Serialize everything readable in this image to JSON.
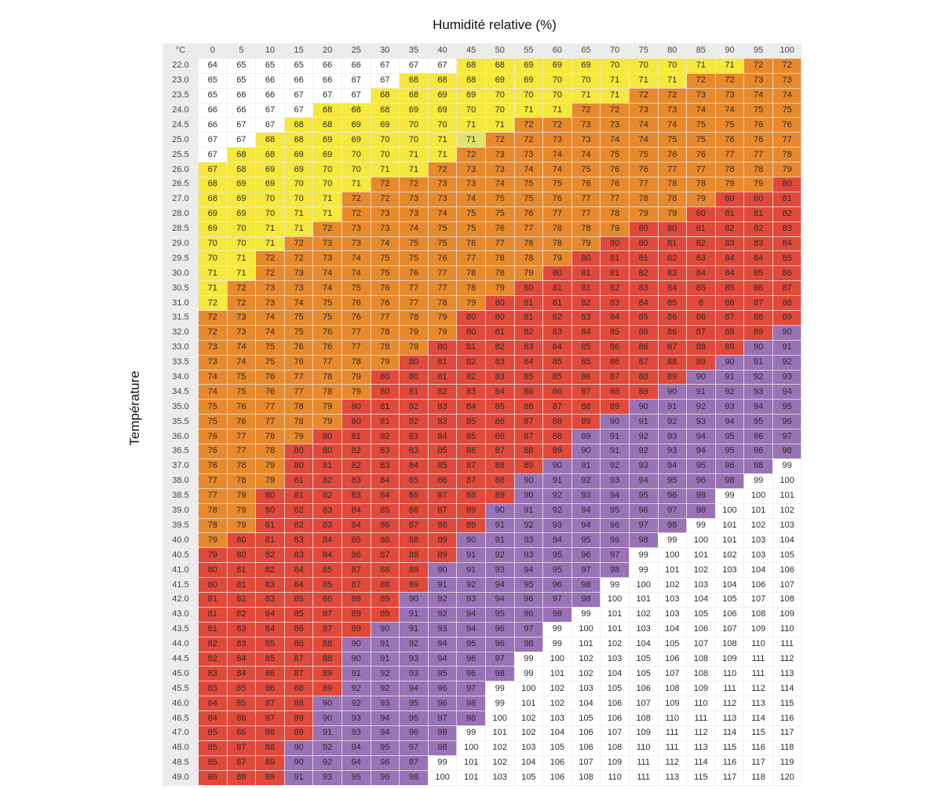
{
  "chart_data": {
    "type": "heatmap",
    "xlabel": "Humidité relative (%)",
    "ylabel": "Température",
    "corner_label": "°C",
    "x": [
      0,
      5,
      10,
      15,
      20,
      25,
      30,
      35,
      40,
      45,
      50,
      55,
      60,
      65,
      70,
      75,
      80,
      85,
      90,
      95,
      100
    ],
    "y": [
      "22.0",
      "23.0",
      "23.5",
      "24.0",
      "24.5",
      "25.0",
      "25.5",
      "26.0",
      "26.5",
      "27.0",
      "28.0",
      "28.5",
      "29.0",
      "29.5",
      "30.0",
      "30.5",
      "31.0",
      "31.5",
      "32.0",
      "33.0",
      "33.5",
      "34.0",
      "34.5",
      "35.0",
      "35.5",
      "36.0",
      "36.5",
      "37.0",
      "38.0",
      "38.5",
      "39.0",
      "39.5",
      "40.0",
      "40.5",
      "41.0",
      "41.5",
      "42.0",
      "43.0",
      "43.5",
      "44.0",
      "44.5",
      "45.0",
      "45.5",
      "46.0",
      "46.5",
      "47.0",
      "48.0",
      "48.5",
      "49.0"
    ],
    "values": [
      [
        64,
        65,
        65,
        65,
        66,
        66,
        67,
        67,
        67,
        68,
        68,
        69,
        69,
        69,
        70,
        70,
        70,
        71,
        71,
        72,
        72
      ],
      [
        65,
        65,
        66,
        66,
        66,
        67,
        67,
        68,
        68,
        68,
        69,
        69,
        70,
        70,
        71,
        71,
        71,
        72,
        72,
        73,
        73
      ],
      [
        65,
        66,
        66,
        67,
        67,
        67,
        68,
        68,
        69,
        69,
        70,
        70,
        70,
        71,
        71,
        72,
        72,
        73,
        73,
        74,
        74
      ],
      [
        66,
        66,
        67,
        67,
        68,
        68,
        68,
        69,
        69,
        70,
        70,
        71,
        71,
        72,
        72,
        73,
        73,
        74,
        74,
        75,
        75
      ],
      [
        66,
        67,
        67,
        68,
        68,
        69,
        69,
        70,
        70,
        71,
        71,
        72,
        72,
        73,
        73,
        74,
        74,
        75,
        75,
        76,
        76
      ],
      [
        67,
        67,
        68,
        68,
        69,
        69,
        70,
        70,
        71,
        71,
        72,
        72,
        73,
        73,
        74,
        74,
        75,
        75,
        76,
        76,
        77
      ],
      [
        67,
        68,
        68,
        69,
        69,
        70,
        70,
        71,
        71,
        72,
        73,
        73,
        74,
        74,
        75,
        75,
        76,
        76,
        77,
        77,
        78
      ],
      [
        67,
        68,
        69,
        69,
        70,
        70,
        71,
        71,
        72,
        73,
        73,
        74,
        74,
        75,
        76,
        76,
        77,
        77,
        78,
        78,
        79
      ],
      [
        68,
        69,
        69,
        70,
        70,
        71,
        72,
        72,
        73,
        73,
        74,
        75,
        75,
        76,
        76,
        77,
        78,
        78,
        79,
        79,
        80
      ],
      [
        68,
        69,
        70,
        70,
        71,
        72,
        72,
        73,
        73,
        74,
        75,
        75,
        76,
        77,
        77,
        78,
        78,
        79,
        80,
        80,
        81
      ],
      [
        69,
        69,
        70,
        71,
        71,
        72,
        73,
        73,
        74,
        75,
        75,
        76,
        77,
        77,
        78,
        79,
        79,
        80,
        81,
        81,
        82
      ],
      [
        69,
        70,
        71,
        71,
        72,
        73,
        73,
        74,
        75,
        75,
        76,
        77,
        78,
        78,
        79,
        80,
        80,
        81,
        82,
        82,
        83
      ],
      [
        70,
        70,
        71,
        72,
        73,
        73,
        74,
        75,
        75,
        76,
        77,
        78,
        78,
        79,
        80,
        80,
        81,
        82,
        83,
        83,
        84
      ],
      [
        70,
        71,
        72,
        72,
        73,
        74,
        75,
        75,
        76,
        77,
        78,
        78,
        79,
        80,
        81,
        81,
        82,
        83,
        84,
        84,
        85
      ],
      [
        71,
        71,
        72,
        73,
        74,
        74,
        75,
        76,
        77,
        78,
        78,
        79,
        80,
        81,
        81,
        82,
        83,
        84,
        84,
        85,
        86
      ],
      [
        71,
        72,
        73,
        73,
        74,
        75,
        76,
        77,
        77,
        78,
        79,
        80,
        81,
        81,
        82,
        83,
        84,
        85,
        85,
        86,
        87
      ],
      [
        72,
        72,
        73,
        74,
        75,
        76,
        76,
        77,
        78,
        79,
        80,
        81,
        81,
        82,
        83,
        84,
        85,
        8,
        86,
        87,
        88
      ],
      [
        72,
        73,
        74,
        75,
        75,
        76,
        77,
        78,
        79,
        80,
        80,
        81,
        82,
        83,
        84,
        85,
        86,
        86,
        87,
        88,
        89
      ],
      [
        72,
        73,
        74,
        75,
        76,
        77,
        78,
        79,
        79,
        80,
        81,
        82,
        83,
        84,
        85,
        86,
        86,
        87,
        88,
        89,
        90
      ],
      [
        73,
        74,
        75,
        76,
        76,
        77,
        78,
        79,
        80,
        81,
        82,
        83,
        84,
        85,
        86,
        86,
        87,
        88,
        89,
        90,
        91
      ],
      [
        73,
        74,
        75,
        76,
        77,
        78,
        79,
        80,
        81,
        82,
        83,
        84,
        85,
        85,
        86,
        87,
        88,
        89,
        90,
        91,
        92
      ],
      [
        74,
        75,
        76,
        77,
        78,
        79,
        80,
        80,
        81,
        82,
        83,
        85,
        85,
        86,
        87,
        88,
        89,
        90,
        91,
        92,
        93
      ],
      [
        74,
        75,
        76,
        77,
        78,
        79,
        80,
        81,
        82,
        83,
        84,
        86,
        86,
        87,
        88,
        89,
        90,
        91,
        92,
        93,
        94
      ],
      [
        75,
        76,
        77,
        78,
        79,
        80,
        81,
        82,
        83,
        84,
        85,
        86,
        87,
        88,
        89,
        90,
        91,
        92,
        93,
        94,
        95
      ],
      [
        75,
        76,
        77,
        78,
        79,
        80,
        81,
        82,
        83,
        85,
        86,
        87,
        88,
        89,
        90,
        91,
        92,
        93,
        94,
        95,
        96
      ],
      [
        76,
        77,
        78,
        79,
        80,
        81,
        82,
        83,
        84,
        85,
        86,
        87,
        88,
        89,
        91,
        92,
        93,
        94,
        95,
        96,
        97
      ],
      [
        76,
        77,
        78,
        80,
        80,
        82,
        83,
        83,
        85,
        86,
        87,
        88,
        89,
        90,
        91,
        92,
        93,
        94,
        95,
        96,
        98
      ],
      [
        76,
        78,
        79,
        80,
        81,
        82,
        83,
        84,
        85,
        87,
        88,
        89,
        90,
        91,
        92,
        93,
        94,
        95,
        96,
        98,
        99
      ],
      [
        77,
        78,
        79,
        81,
        82,
        83,
        84,
        85,
        86,
        87,
        88,
        90,
        91,
        92,
        93,
        94,
        95,
        96,
        98,
        99,
        100
      ],
      [
        77,
        79,
        80,
        81,
        82,
        83,
        84,
        86,
        87,
        88,
        89,
        90,
        92,
        93,
        94,
        95,
        96,
        98,
        99,
        100,
        101
      ],
      [
        78,
        79,
        80,
        82,
        83,
        84,
        85,
        86,
        87,
        89,
        90,
        91,
        92,
        94,
        95,
        96,
        97,
        98,
        100,
        101,
        102
      ],
      [
        78,
        79,
        81,
        82,
        83,
        84,
        86,
        87,
        88,
        89,
        91,
        92,
        93,
        94,
        96,
        97,
        98,
        99,
        101,
        102,
        103
      ],
      [
        79,
        80,
        81,
        83,
        84,
        85,
        86,
        88,
        89,
        90,
        91,
        93,
        94,
        95,
        96,
        98,
        99,
        100,
        101,
        103,
        104
      ],
      [
        79,
        80,
        82,
        83,
        84,
        86,
        87,
        88,
        89,
        91,
        92,
        93,
        95,
        96,
        97,
        99,
        100,
        101,
        102,
        103,
        105
      ],
      [
        80,
        81,
        82,
        84,
        85,
        87,
        88,
        89,
        90,
        91,
        93,
        94,
        95,
        97,
        98,
        99,
        101,
        102,
        103,
        104,
        106
      ],
      [
        80,
        81,
        83,
        84,
        85,
        87,
        88,
        89,
        91,
        92,
        94,
        95,
        96,
        98,
        99,
        100,
        102,
        103,
        104,
        106,
        107
      ],
      [
        81,
        82,
        83,
        85,
        86,
        88,
        89,
        90,
        92,
        93,
        94,
        96,
        97,
        98,
        100,
        101,
        103,
        104,
        105,
        107,
        108
      ],
      [
        81,
        82,
        84,
        85,
        87,
        89,
        89,
        91,
        92,
        94,
        95,
        96,
        98,
        99,
        101,
        102,
        103,
        105,
        106,
        108,
        109
      ],
      [
        81,
        83,
        84,
        86,
        87,
        89,
        90,
        91,
        93,
        94,
        96,
        97,
        99,
        100,
        101,
        103,
        104,
        106,
        107,
        109,
        110
      ],
      [
        82,
        83,
        85,
        86,
        88,
        90,
        91,
        92,
        94,
        95,
        96,
        98,
        99,
        101,
        102,
        104,
        105,
        107,
        108,
        110,
        111
      ],
      [
        82,
        84,
        85,
        87,
        88,
        90,
        91,
        93,
        94,
        96,
        97,
        99,
        100,
        102,
        103,
        105,
        106,
        108,
        109,
        111,
        112
      ],
      [
        83,
        84,
        86,
        87,
        89,
        91,
        92,
        93,
        95,
        96,
        98,
        99,
        101,
        102,
        104,
        105,
        107,
        108,
        110,
        111,
        113
      ],
      [
        83,
        85,
        86,
        88,
        89,
        92,
        92,
        94,
        96,
        97,
        99,
        100,
        102,
        103,
        105,
        106,
        108,
        109,
        111,
        112,
        114
      ],
      [
        84,
        85,
        87,
        88,
        90,
        92,
        93,
        95,
        96,
        98,
        99,
        101,
        102,
        104,
        106,
        107,
        109,
        110,
        112,
        113,
        115
      ],
      [
        84,
        86,
        87,
        89,
        90,
        93,
        94,
        95,
        97,
        98,
        100,
        102,
        103,
        105,
        106,
        108,
        110,
        111,
        113,
        114,
        116
      ],
      [
        85,
        86,
        88,
        89,
        91,
        93,
        94,
        96,
        98,
        99,
        101,
        102,
        104,
        106,
        107,
        109,
        111,
        112,
        114,
        115,
        117
      ],
      [
        85,
        87,
        88,
        90,
        92,
        94,
        95,
        97,
        98,
        100,
        102,
        103,
        105,
        106,
        108,
        110,
        111,
        113,
        115,
        116,
        118
      ],
      [
        85,
        87,
        89,
        90,
        92,
        94,
        96,
        87,
        99,
        101,
        102,
        104,
        106,
        107,
        109,
        111,
        112,
        114,
        116,
        117,
        119
      ],
      [
        86,
        88,
        89,
        91,
        93,
        95,
        96,
        98,
        100,
        101,
        103,
        105,
        106,
        108,
        110,
        111,
        113,
        115,
        117,
        118,
        120
      ]
    ],
    "color_scale": [
      {
        "min": 0,
        "max": 67,
        "color": "#ffffff"
      },
      {
        "min": 68,
        "max": 71,
        "color": "#f6e83c"
      },
      {
        "min": 72,
        "max": 79,
        "color": "#e8892c"
      },
      {
        "min": 80,
        "max": 89,
        "color": "#e1493b"
      },
      {
        "min": 90,
        "max": 98,
        "color": "#9a72b6"
      },
      {
        "min": 99,
        "max": 999,
        "color": "#ffffff"
      }
    ],
    "color_overrides": [
      {
        "y": "26.0",
        "x": 0,
        "color": "#f6e83c"
      },
      {
        "y": "25.0",
        "x": 45,
        "color": "#e1e46c"
      },
      {
        "y": "31.0",
        "x": 0,
        "color": "#f6e83c"
      },
      {
        "y": "31.0",
        "x": 85,
        "color": "#e1493b"
      },
      {
        "y": "36.0",
        "x": 65,
        "color": "#9a72b6"
      },
      {
        "y": "40.5",
        "x": 0,
        "color": "#e1493b"
      },
      {
        "y": "48.5",
        "x": 35,
        "color": "#9a72b6"
      }
    ]
  }
}
